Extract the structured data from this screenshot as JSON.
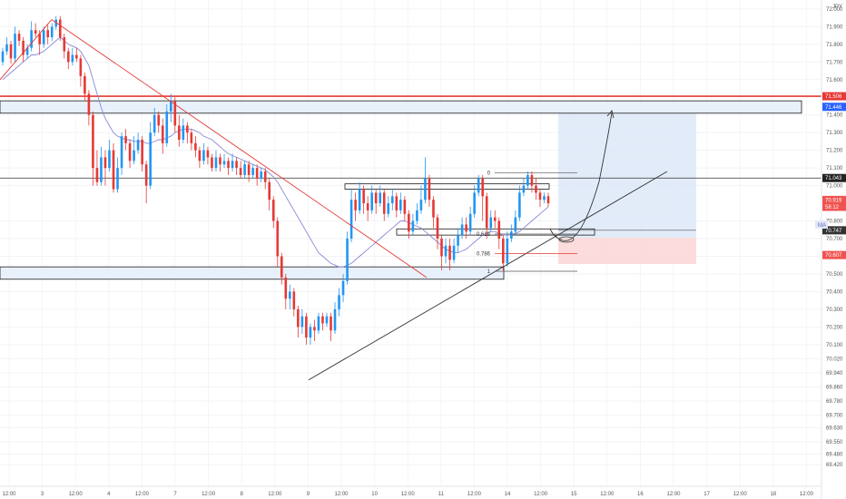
{
  "chart_data": {
    "type": "candlestick",
    "currency": "JPY",
    "ylim": [
      69.38,
      72.02
    ],
    "y_ticks": [
      72.0,
      71.9,
      71.8,
      71.7,
      71.6,
      71.4,
      71.3,
      71.2,
      71.1,
      71.0,
      70.8,
      70.7,
      70.6,
      70.5,
      70.4,
      70.3,
      70.2,
      70.1,
      70.02,
      69.94,
      69.86,
      69.78,
      69.7,
      69.63,
      69.55,
      69.48,
      69.42
    ],
    "x_ticks": [
      "12:00",
      "3",
      "12:00",
      "4",
      "12:00",
      "7",
      "12:00",
      "8",
      "12:00",
      "9",
      "12:00",
      "10",
      "12:00",
      "11",
      "12:00",
      "14",
      "12:00",
      "15",
      "12:00",
      "16",
      "12:00",
      "17",
      "12:00",
      "18",
      "12:00"
    ],
    "price_badges": [
      {
        "label": "71.506",
        "value": 71.506,
        "color": "#e53935"
      },
      {
        "label": "71.446",
        "value": 71.446,
        "color": "#2962ff"
      },
      {
        "label": "71.043",
        "value": 71.043,
        "color": "#222222"
      },
      {
        "label": "70.919",
        "value": 70.919,
        "color": "#ef5350"
      },
      {
        "label": "58:12",
        "value": 70.88,
        "color": "#ef5350"
      },
      {
        "label": "70.747",
        "value": 70.747,
        "color": "#333333"
      },
      {
        "label": "70.607",
        "value": 70.607,
        "color": "#ef5350"
      }
    ],
    "ma_badge": "MA",
    "fib_labels": [
      {
        "label": "0",
        "value": 71.072
      },
      {
        "label": "0.618",
        "value": 70.726
      },
      {
        "label": "0.786",
        "value": 70.616
      },
      {
        "label": "1",
        "value": 70.515
      }
    ],
    "candles": [
      [
        71.7,
        71.76,
        71.68,
        71.78
      ],
      [
        71.76,
        71.8,
        71.74,
        71.84
      ],
      [
        71.8,
        71.72,
        71.69,
        71.82
      ],
      [
        71.72,
        71.86,
        71.7,
        71.9
      ],
      [
        71.86,
        71.82,
        71.79,
        71.88
      ],
      [
        71.82,
        71.74,
        71.7,
        71.84
      ],
      [
        71.74,
        71.78,
        71.72,
        71.8
      ],
      [
        71.78,
        71.88,
        71.76,
        71.93
      ],
      [
        71.88,
        71.86,
        71.84,
        71.92
      ],
      [
        71.86,
        71.8,
        71.74,
        71.88
      ],
      [
        71.8,
        71.88,
        71.78,
        71.9
      ],
      [
        71.88,
        71.84,
        71.8,
        71.91
      ],
      [
        71.84,
        71.9,
        71.82,
        71.92
      ],
      [
        71.9,
        71.94,
        71.88,
        71.96
      ],
      [
        71.94,
        71.84,
        71.82,
        71.96
      ],
      [
        71.84,
        71.76,
        71.72,
        71.86
      ],
      [
        71.76,
        71.7,
        71.66,
        71.78
      ],
      [
        71.7,
        71.74,
        71.68,
        71.78
      ],
      [
        71.74,
        71.72,
        71.7,
        71.78
      ],
      [
        71.72,
        71.62,
        71.56,
        71.74
      ],
      [
        71.62,
        71.52,
        71.48,
        71.64
      ],
      [
        71.52,
        71.4,
        71.34,
        71.54
      ],
      [
        71.4,
        71.1,
        71.0,
        71.42
      ],
      [
        71.1,
        71.02,
        71.0,
        71.2
      ],
      [
        71.02,
        71.16,
        71.0,
        71.22
      ],
      [
        71.16,
        71.1,
        71.0,
        71.2
      ],
      [
        71.1,
        71.2,
        71.08,
        71.26
      ],
      [
        71.2,
        70.98,
        70.96,
        71.24
      ],
      [
        70.98,
        71.1,
        70.96,
        71.16
      ],
      [
        71.1,
        71.28,
        71.06,
        71.3
      ],
      [
        71.28,
        71.24,
        71.2,
        71.32
      ],
      [
        71.24,
        71.14,
        71.1,
        71.26
      ],
      [
        71.14,
        71.2,
        71.12,
        71.28
      ],
      [
        71.2,
        71.26,
        71.18,
        71.3
      ],
      [
        71.26,
        71.12,
        71.08,
        71.28
      ],
      [
        71.12,
        71.0,
        70.9,
        71.14
      ],
      [
        71.0,
        71.3,
        70.98,
        71.36
      ],
      [
        71.3,
        71.4,
        71.28,
        71.44
      ],
      [
        71.4,
        71.34,
        71.3,
        71.42
      ],
      [
        71.34,
        71.24,
        71.18,
        71.38
      ],
      [
        71.24,
        71.42,
        71.22,
        71.46
      ],
      [
        71.42,
        71.48,
        71.36,
        71.52
      ],
      [
        71.48,
        71.34,
        71.3,
        71.5
      ],
      [
        71.34,
        71.26,
        71.22,
        71.4
      ],
      [
        71.26,
        71.34,
        71.24,
        71.38
      ],
      [
        71.34,
        71.3,
        71.24,
        71.36
      ],
      [
        71.3,
        71.24,
        71.2,
        71.32
      ],
      [
        71.24,
        71.2,
        71.16,
        71.28
      ],
      [
        71.2,
        71.14,
        71.1,
        71.22
      ],
      [
        71.14,
        71.2,
        71.12,
        71.24
      ],
      [
        71.2,
        71.16,
        71.12,
        71.22
      ],
      [
        71.16,
        71.1,
        71.08,
        71.18
      ],
      [
        71.1,
        71.16,
        71.08,
        71.2
      ],
      [
        71.16,
        71.12,
        71.08,
        71.18
      ],
      [
        71.12,
        71.14,
        71.1,
        71.18
      ],
      [
        71.14,
        71.1,
        71.06,
        71.16
      ],
      [
        71.1,
        71.14,
        71.08,
        71.18
      ],
      [
        71.14,
        71.1,
        71.06,
        71.16
      ],
      [
        71.1,
        71.06,
        71.04,
        71.14
      ],
      [
        71.06,
        71.12,
        71.04,
        71.14
      ],
      [
        71.12,
        71.06,
        71.02,
        71.14
      ],
      [
        71.06,
        71.1,
        71.04,
        71.12
      ],
      [
        71.1,
        71.04,
        71.0,
        71.12
      ],
      [
        71.04,
        71.08,
        71.02,
        71.1
      ],
      [
        71.08,
        71.02,
        70.98,
        71.1
      ],
      [
        71.02,
        70.92,
        70.86,
        71.04
      ],
      [
        70.92,
        70.8,
        70.76,
        70.94
      ],
      [
        70.8,
        70.6,
        70.54,
        70.82
      ],
      [
        70.6,
        70.48,
        70.44,
        70.62
      ],
      [
        70.48,
        70.36,
        70.3,
        70.5
      ],
      [
        70.36,
        70.4,
        70.3,
        70.44
      ],
      [
        70.4,
        70.3,
        70.26,
        70.42
      ],
      [
        70.3,
        70.2,
        70.14,
        70.32
      ],
      [
        70.2,
        70.26,
        70.16,
        70.3
      ],
      [
        70.26,
        70.14,
        70.1,
        70.28
      ],
      [
        70.14,
        70.2,
        70.1,
        70.22
      ],
      [
        70.2,
        70.18,
        70.12,
        70.24
      ],
      [
        70.18,
        70.26,
        70.16,
        70.28
      ],
      [
        70.26,
        70.22,
        70.18,
        70.28
      ],
      [
        70.22,
        70.26,
        70.2,
        70.28
      ],
      [
        70.26,
        70.18,
        70.12,
        70.28
      ],
      [
        70.18,
        70.3,
        70.16,
        70.34
      ],
      [
        70.3,
        70.38,
        70.26,
        70.42
      ],
      [
        70.38,
        70.46,
        70.34,
        70.5
      ],
      [
        70.46,
        70.7,
        70.44,
        70.74
      ],
      [
        70.7,
        70.92,
        70.68,
        70.98
      ],
      [
        70.92,
        70.86,
        70.8,
        70.96
      ],
      [
        70.86,
        70.98,
        70.84,
        71.02
      ],
      [
        70.98,
        70.9,
        70.84,
        71.0
      ],
      [
        70.9,
        70.86,
        70.8,
        70.94
      ],
      [
        70.86,
        70.96,
        70.84,
        71.0
      ],
      [
        70.96,
        70.9,
        70.84,
        70.98
      ],
      [
        70.9,
        70.96,
        70.88,
        71.0
      ],
      [
        70.96,
        70.84,
        70.8,
        70.98
      ],
      [
        70.84,
        70.9,
        70.82,
        70.94
      ],
      [
        70.9,
        70.94,
        70.86,
        70.98
      ],
      [
        70.94,
        70.86,
        70.82,
        70.96
      ],
      [
        70.86,
        70.92,
        70.84,
        70.96
      ],
      [
        70.92,
        70.84,
        70.8,
        70.94
      ],
      [
        70.84,
        70.74,
        70.7,
        70.86
      ],
      [
        70.74,
        70.8,
        70.72,
        70.84
      ],
      [
        70.8,
        70.86,
        70.78,
        70.9
      ],
      [
        70.86,
        70.92,
        70.84,
        71.0
      ],
      [
        70.92,
        71.04,
        70.9,
        71.16
      ],
      [
        71.04,
        70.92,
        70.88,
        71.06
      ],
      [
        70.92,
        70.82,
        70.76,
        70.94
      ],
      [
        70.82,
        70.7,
        70.64,
        70.84
      ],
      [
        70.7,
        70.6,
        70.52,
        70.72
      ],
      [
        70.6,
        70.66,
        70.56,
        70.7
      ],
      [
        70.66,
        70.58,
        70.52,
        70.7
      ],
      [
        70.58,
        70.66,
        70.56,
        70.7
      ],
      [
        70.66,
        70.72,
        70.62,
        70.76
      ],
      [
        70.72,
        70.78,
        70.7,
        70.82
      ],
      [
        70.78,
        70.74,
        70.7,
        70.82
      ],
      [
        70.74,
        70.84,
        70.72,
        70.88
      ],
      [
        70.84,
        70.96,
        70.82,
        71.0
      ],
      [
        70.96,
        71.04,
        70.94,
        71.06
      ],
      [
        71.04,
        70.94,
        70.8,
        71.06
      ],
      [
        70.94,
        70.76,
        70.7,
        70.96
      ],
      [
        70.76,
        70.82,
        70.74,
        70.86
      ],
      [
        70.82,
        70.8,
        70.76,
        70.86
      ],
      [
        70.8,
        70.7,
        70.64,
        70.82
      ],
      [
        70.7,
        70.56,
        70.52,
        70.72
      ],
      [
        70.56,
        70.7,
        70.54,
        70.74
      ],
      [
        70.7,
        70.74,
        70.68,
        70.78
      ],
      [
        70.74,
        70.82,
        70.72,
        70.86
      ],
      [
        70.82,
        70.96,
        70.8,
        71.0
      ],
      [
        70.96,
        71.0,
        70.94,
        71.04
      ],
      [
        71.0,
        71.06,
        70.98,
        71.08
      ],
      [
        71.06,
        71.0,
        70.96,
        71.08
      ],
      [
        71.0,
        70.96,
        70.92,
        71.04
      ],
      [
        70.96,
        70.92,
        70.88,
        70.98
      ],
      [
        70.92,
        70.94,
        70.9,
        70.96
      ],
      [
        70.94,
        70.9,
        70.88,
        70.96
      ]
    ],
    "ma": [
      71.6,
      71.62,
      71.64,
      71.66,
      71.68,
      71.7,
      71.72,
      71.74,
      71.74,
      71.75,
      71.76,
      71.78,
      71.8,
      71.82,
      71.84,
      71.82,
      71.8,
      71.79,
      71.78,
      71.76,
      71.72,
      71.68,
      71.6,
      71.52,
      71.44,
      71.38,
      71.34,
      71.3,
      71.28,
      71.27,
      71.26,
      71.26,
      71.25,
      71.25,
      71.25,
      71.24,
      71.24,
      71.25,
      71.26,
      71.26,
      71.27,
      71.28,
      71.3,
      71.31,
      71.32,
      71.32,
      71.32,
      71.31,
      71.3,
      71.28,
      71.27,
      71.26,
      71.24,
      71.22,
      71.2,
      71.18,
      71.17,
      71.16,
      71.15,
      71.14,
      71.13,
      71.12,
      71.11,
      71.1,
      71.09,
      71.07,
      71.05,
      71.02,
      70.98,
      70.94,
      70.9,
      70.86,
      70.82,
      70.78,
      70.74,
      70.7,
      70.66,
      70.62,
      70.6,
      70.58,
      70.56,
      70.55,
      70.54,
      70.54,
      70.55,
      70.56,
      70.58,
      70.6,
      70.62,
      70.64,
      70.66,
      70.68,
      70.7,
      70.72,
      70.74,
      70.76,
      70.78,
      70.8,
      70.8,
      70.79,
      70.78,
      70.77,
      70.76,
      70.74,
      70.72,
      70.7,
      70.68,
      70.66,
      70.64,
      70.63,
      70.62,
      70.62,
      70.63,
      70.64,
      70.66,
      70.68,
      70.7,
      70.72,
      70.73,
      70.74,
      70.74,
      70.73,
      70.72,
      70.72,
      70.72,
      70.73,
      70.74,
      70.76,
      70.78,
      70.8,
      70.82,
      70.84,
      70.86,
      70.88
    ]
  }
}
